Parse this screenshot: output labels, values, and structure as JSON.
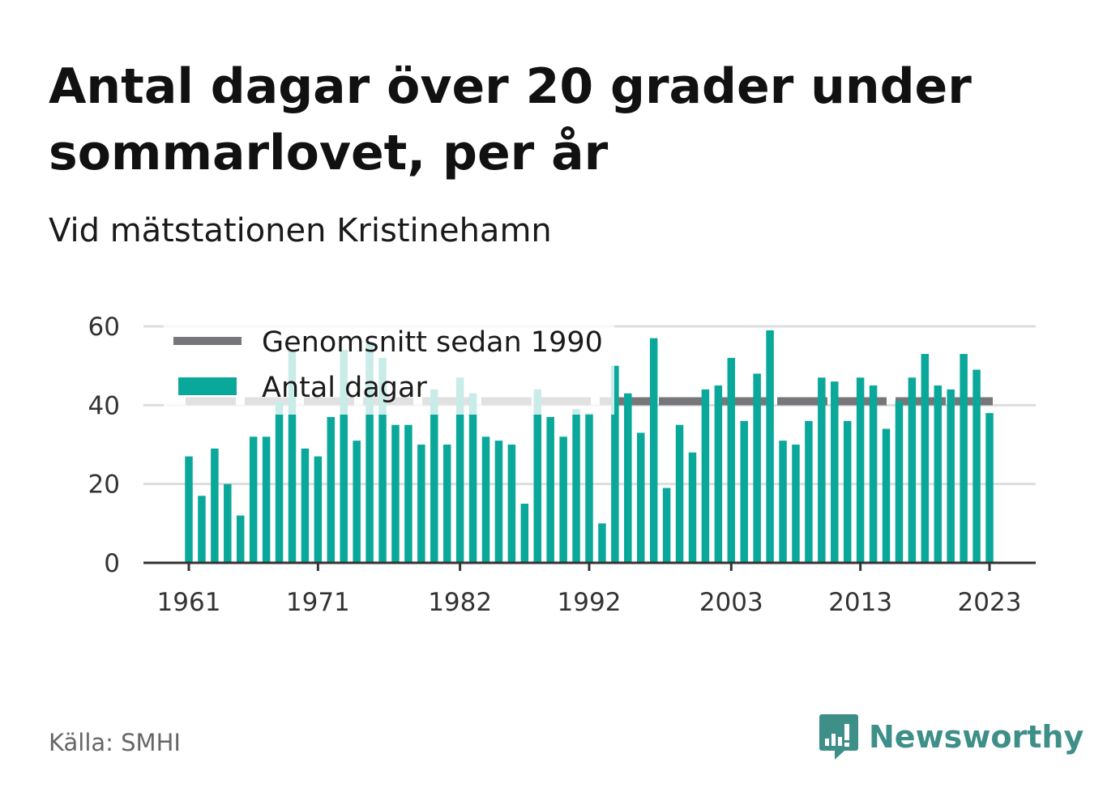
{
  "header": {
    "title": "Antal dagar över 20 grader under sommarlovet, per år",
    "subtitle": "Vid mätstationen Kristinehamn"
  },
  "footer": {
    "source": "Källa: SMHI",
    "brand": "Newsworthy",
    "brand_icon": "newsworthy-logo-icon"
  },
  "colors": {
    "bar": "#0aa89a",
    "average_line": "#77767a",
    "grid": "#dddddd",
    "axis": "#333333",
    "brand": "#3f8f89"
  },
  "chart_data": {
    "type": "bar",
    "x_start": 1961,
    "x_end": 2023,
    "x_ticks": [
      1961,
      1971,
      1982,
      1992,
      2003,
      2013,
      2023
    ],
    "y_ticks": [
      0,
      20,
      40,
      60
    ],
    "ylim": [
      0,
      60
    ],
    "grid": true,
    "legend_position": "top-left",
    "legend": [
      {
        "label": "Genomsnitt sedan 1990",
        "kind": "line"
      },
      {
        "label": "Antal dagar",
        "kind": "bar"
      }
    ],
    "series": [
      {
        "name": "Antal dagar",
        "kind": "bar",
        "x": [
          1961,
          1962,
          1963,
          1964,
          1965,
          1966,
          1967,
          1968,
          1969,
          1970,
          1971,
          1972,
          1973,
          1974,
          1975,
          1976,
          1977,
          1978,
          1979,
          1980,
          1981,
          1982,
          1983,
          1984,
          1985,
          1986,
          1987,
          1988,
          1989,
          1990,
          1991,
          1992,
          1993,
          1994,
          1995,
          1996,
          1997,
          1998,
          1999,
          2000,
          2001,
          2002,
          2003,
          2004,
          2005,
          2006,
          2007,
          2008,
          2009,
          2010,
          2011,
          2012,
          2013,
          2014,
          2015,
          2016,
          2017,
          2018,
          2019,
          2020,
          2021,
          2022,
          2023
        ],
        "values": [
          27,
          17,
          29,
          20,
          12,
          32,
          32,
          41,
          54,
          29,
          27,
          37,
          54,
          31,
          56,
          52,
          35,
          35,
          30,
          44,
          30,
          47,
          43,
          32,
          31,
          30,
          15,
          44,
          37,
          32,
          39,
          38,
          10,
          50,
          43,
          33,
          57,
          19,
          35,
          28,
          44,
          45,
          52,
          36,
          48,
          59,
          31,
          30,
          36,
          47,
          46,
          36,
          47,
          45,
          34,
          41,
          47,
          53,
          45,
          44,
          53,
          49,
          38
        ]
      },
      {
        "name": "Genomsnitt sedan 1990",
        "kind": "line",
        "x_range": [
          1961,
          2023
        ],
        "value": 41
      }
    ]
  }
}
